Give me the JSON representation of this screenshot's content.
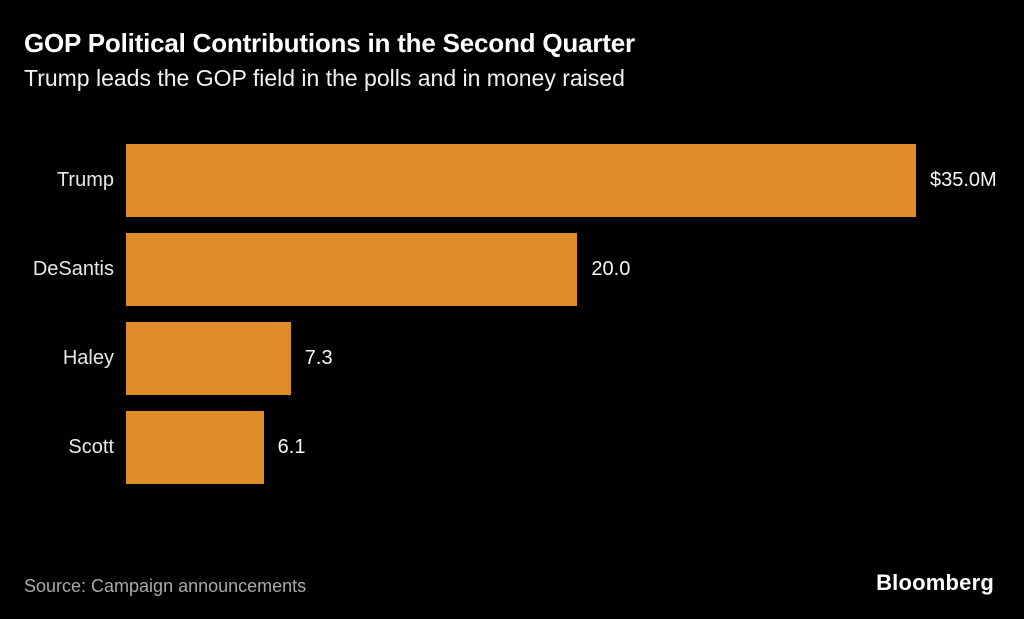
{
  "header": {
    "title": "GOP Political Contributions in the Second Quarter",
    "subtitle": "Trump leads the GOP field in the polls and in money raised"
  },
  "chart_data": {
    "type": "bar",
    "orientation": "horizontal",
    "title": "GOP Political Contributions in the Second Quarter",
    "subtitle": "Trump leads the GOP field in the polls and in money raised",
    "categories": [
      "Trump",
      "DeSantis",
      "Haley",
      "Scott"
    ],
    "values": [
      35.0,
      20.0,
      7.3,
      6.1
    ],
    "value_labels": [
      "$35.0M",
      "20.0",
      "7.3",
      "6.1"
    ],
    "xlim": [
      0,
      35
    ],
    "grid": false,
    "legend": false,
    "bar_color": "#DD8C28"
  },
  "footer": {
    "source": "Source: Campaign announcements",
    "brand": "Bloomberg"
  },
  "colors": {
    "background": "#000000",
    "bar": "#DD8C28",
    "title": "#FFFFFF",
    "subtitle": "#F2F2F2",
    "label": "#E8E8E8",
    "value": "#F5F5F5",
    "source": "#A9A9A9",
    "brand": "#FFFFFF"
  }
}
